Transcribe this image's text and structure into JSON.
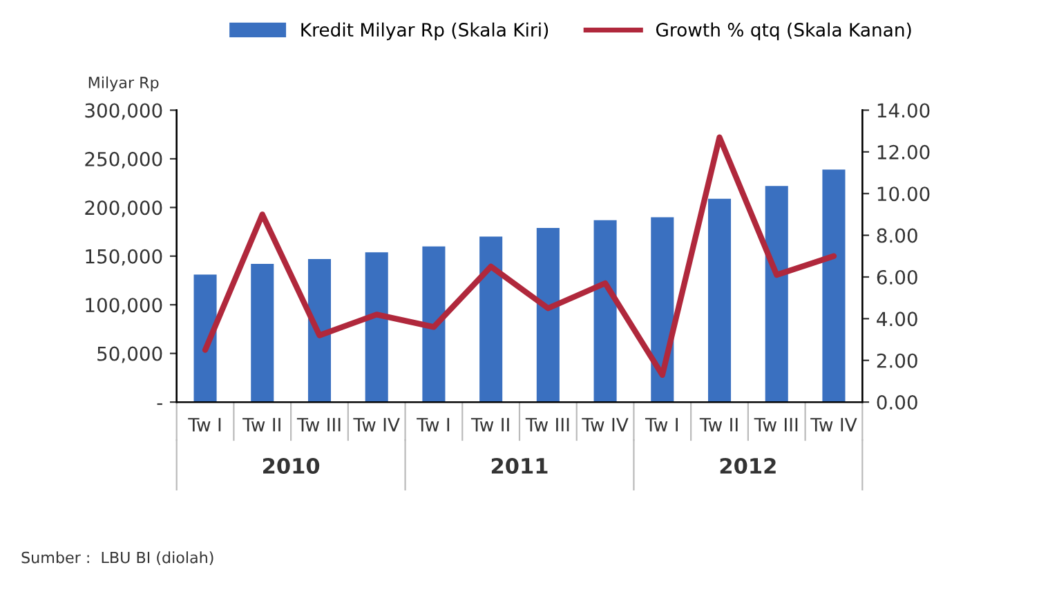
{
  "chart_data": {
    "type": "bar",
    "ylabel": "Milyar Rp",
    "categories": [
      "Tw I",
      "Tw II",
      "Tw III",
      "Tw IV",
      "Tw I",
      "Tw II",
      "Tw III",
      "Tw IV",
      "Tw I",
      "Tw II",
      "Tw III",
      "Tw IV"
    ],
    "series": [
      {
        "name": "Kredit Milyar Rp (Skala Kiri)",
        "color": "#3a70c0",
        "values": [
          131000,
          142000,
          147000,
          154000,
          160000,
          170000,
          179000,
          187000,
          190000,
          209000,
          222000,
          239000
        ]
      },
      {
        "name": "Growth % qtq (Skala Kanan)",
        "type": "line",
        "axis": "y2",
        "color": "#b0283c",
        "values": [
          2.5,
          9.0,
          3.2,
          4.2,
          3.6,
          6.5,
          4.5,
          5.7,
          1.3,
          12.7,
          6.1,
          7.0
        ]
      }
    ],
    "ylim": [
      0,
      300000
    ],
    "yticks": [
      {
        "value": 0,
        "label": "-"
      },
      {
        "value": 50000,
        "label": "50,000"
      },
      {
        "value": 100000,
        "label": "100,000"
      },
      {
        "value": 150000,
        "label": "150,000"
      },
      {
        "value": 200000,
        "label": "200,000"
      },
      {
        "value": 250000,
        "label": "250,000"
      },
      {
        "value": 300000,
        "label": "300,000"
      }
    ],
    "y2lim": [
      0,
      14
    ],
    "y2ticks": [
      {
        "value": 0,
        "label": "0.00"
      },
      {
        "value": 2,
        "label": "2.00"
      },
      {
        "value": 4,
        "label": "4.00"
      },
      {
        "value": 6,
        "label": "6.00"
      },
      {
        "value": 8,
        "label": "8.00"
      },
      {
        "value": 10,
        "label": "10.00"
      },
      {
        "value": 12,
        "label": "12.00"
      },
      {
        "value": 14,
        "label": "14.00"
      }
    ],
    "legend": "top",
    "grid": false,
    "annotations": [
      "2010",
      "2011",
      "2012",
      "Sumber :  LBU BI (diolah)"
    ]
  }
}
